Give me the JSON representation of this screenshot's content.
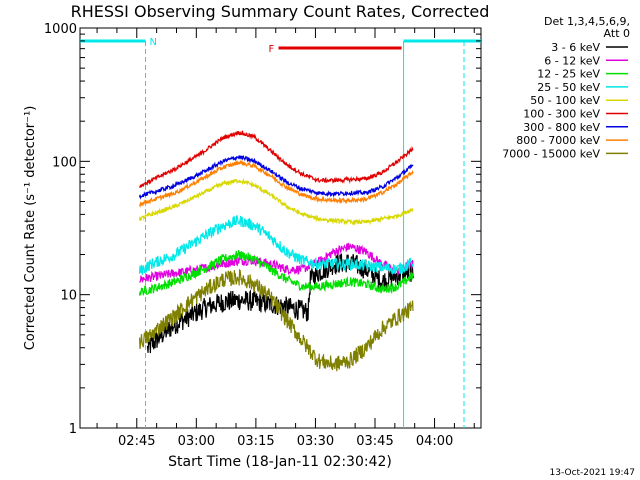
{
  "chart_data": {
    "type": "line",
    "title": "RHESSI Observing Summary Count Rates, Corrected",
    "xlabel": "Start Time (18-Jan-11 02:30:42)",
    "ylabel": "Corrected Count Rate (s⁻¹ detector⁻¹)",
    "yscale": "log",
    "ylim": [
      1,
      1000
    ],
    "xlim_minutes": [
      0,
      101
    ],
    "ytick_labels": [
      "1",
      "10",
      "100",
      "1000"
    ],
    "xtick_labels": [
      "02:45",
      "03:00",
      "03:15",
      "03:30",
      "03:45",
      "04:00"
    ],
    "xtick_minutes": [
      14.3,
      29.3,
      44.3,
      59.3,
      74.3,
      89.3
    ],
    "legend_header": [
      "Det 1,3,4,5,6,9,",
      "Att 0"
    ],
    "series": [
      {
        "name": "3 - 6 keV",
        "color": "#000000",
        "x": [
          17,
          20,
          24,
          28,
          32,
          36,
          40,
          44,
          48,
          52,
          56,
          57.5,
          58,
          60,
          64,
          68,
          72,
          76,
          80,
          84
        ],
        "y": [
          3.9,
          4.8,
          6,
          7,
          8.1,
          8.8,
          9.1,
          8.9,
          8.5,
          8.1,
          7.6,
          7.4,
          13,
          14.5,
          17,
          17.5,
          15.5,
          12.5,
          14,
          15
        ]
      },
      {
        "name": "6 - 12 keV",
        "color": "#e000e0",
        "x": [
          15,
          18,
          24,
          30,
          36,
          40,
          44,
          48,
          52,
          56,
          60,
          64,
          68,
          72,
          76,
          80,
          84
        ],
        "y": [
          13,
          13.5,
          14.5,
          15.5,
          17,
          18,
          18,
          17,
          15.5,
          15.5,
          17.5,
          21,
          23,
          21,
          17,
          15,
          17
        ]
      },
      {
        "name": "12 - 25 keV",
        "color": "#00e000",
        "x": [
          15,
          18,
          24,
          30,
          36,
          40,
          44,
          48,
          52,
          56,
          60,
          64,
          68,
          72,
          76,
          80,
          84
        ],
        "y": [
          10.5,
          11,
          12.5,
          15,
          18.5,
          20,
          18.5,
          15.5,
          13,
          11.5,
          11.5,
          12,
          12.5,
          12,
          11,
          11.5,
          14
        ]
      },
      {
        "name": "25 - 50 keV",
        "color": "#00e8e8",
        "x": [
          15,
          18,
          24,
          30,
          36,
          40,
          44,
          48,
          52,
          56,
          60,
          64,
          68,
          72,
          76,
          80,
          84
        ],
        "y": [
          15,
          17,
          20,
          26,
          33,
          36,
          33,
          27,
          21,
          18,
          17,
          17,
          17,
          16.5,
          16,
          15.5,
          17.5
        ]
      },
      {
        "name": "50 - 100 keV",
        "color": "#d8d800",
        "x": [
          15,
          18,
          24,
          30,
          36,
          40,
          44,
          48,
          52,
          56,
          60,
          64,
          68,
          72,
          76,
          80,
          84
        ],
        "y": [
          37,
          40,
          46,
          56,
          68,
          72,
          66,
          56,
          46,
          40,
          37,
          36,
          35,
          35,
          37,
          39,
          44
        ]
      },
      {
        "name": "100 - 300 keV",
        "color": "#e00000",
        "x": [
          15,
          18,
          24,
          30,
          36,
          40,
          44,
          48,
          52,
          56,
          60,
          64,
          68,
          72,
          76,
          80,
          84
        ],
        "y": [
          65,
          72,
          88,
          112,
          150,
          165,
          152,
          120,
          95,
          80,
          72,
          72,
          73,
          74,
          82,
          100,
          125
        ]
      },
      {
        "name": "300 - 800 keV",
        "color": "#0000e0",
        "x": [
          15,
          18,
          24,
          30,
          36,
          40,
          44,
          48,
          52,
          56,
          60,
          64,
          68,
          72,
          76,
          80,
          84
        ],
        "y": [
          55,
          58,
          66,
          80,
          100,
          108,
          100,
          85,
          70,
          62,
          58,
          57,
          58,
          58,
          64,
          76,
          94
        ]
      },
      {
        "name": "800 - 7000 keV",
        "color": "#ff8000",
        "x": [
          15,
          18,
          24,
          30,
          36,
          40,
          44,
          48,
          52,
          56,
          60,
          64,
          68,
          72,
          76,
          80,
          84
        ],
        "y": [
          48,
          51,
          58,
          72,
          90,
          98,
          92,
          78,
          64,
          56,
          52,
          51,
          51,
          52,
          58,
          68,
          84
        ]
      },
      {
        "name": "7000 - 15000 keV",
        "color": "#808000",
        "x": [
          15,
          18,
          20,
          24,
          28,
          32,
          36,
          40,
          44,
          48,
          52,
          56,
          60,
          64,
          68,
          72,
          76,
          80,
          84
        ],
        "y": [
          4.4,
          5,
          5.7,
          7,
          9,
          11,
          13,
          13.5,
          12,
          9.5,
          6.5,
          4.5,
          3.2,
          3,
          3.2,
          4,
          5.5,
          6.8,
          8
        ]
      }
    ],
    "annotations": [
      {
        "label": "N",
        "color": "#00e8e8",
        "minutes": [
          0,
          16.5
        ]
      },
      {
        "label": "N",
        "color": "#00e8e8",
        "minutes": [
          81.5,
          101
        ]
      },
      {
        "label": "F",
        "color": "#e00000",
        "minutes": [
          50,
          81
        ]
      }
    ]
  },
  "footer": {
    "timestamp": "13-Oct-2021 19:47"
  }
}
